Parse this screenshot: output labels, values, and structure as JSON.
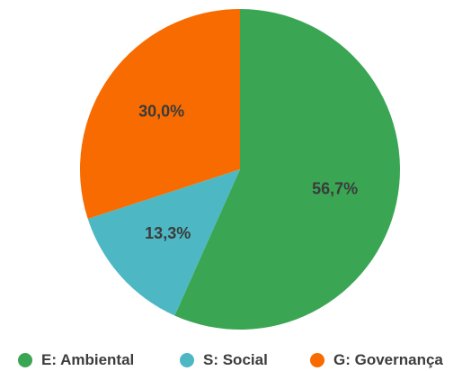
{
  "chart_data": {
    "type": "pie",
    "title": "",
    "slices": [
      {
        "name": "E: Ambiental",
        "value": 56.7,
        "label": "56,7%",
        "color": "#3aa654"
      },
      {
        "name": "S: Social",
        "value": 13.3,
        "label": "13,3%",
        "color": "#4db8c4"
      },
      {
        "name": "G: Governança",
        "value": 30.0,
        "label": "30,0%",
        "color": "#f76b00"
      }
    ],
    "start_angle_deg": 0,
    "direction": "clockwise",
    "legend_position": "bottom"
  },
  "legend": {
    "items": [
      {
        "label": "E: Ambiental",
        "color": "#3aa654"
      },
      {
        "label": "S: Social",
        "color": "#4db8c4"
      },
      {
        "label": "G: Governança",
        "color": "#f76b00"
      }
    ]
  }
}
